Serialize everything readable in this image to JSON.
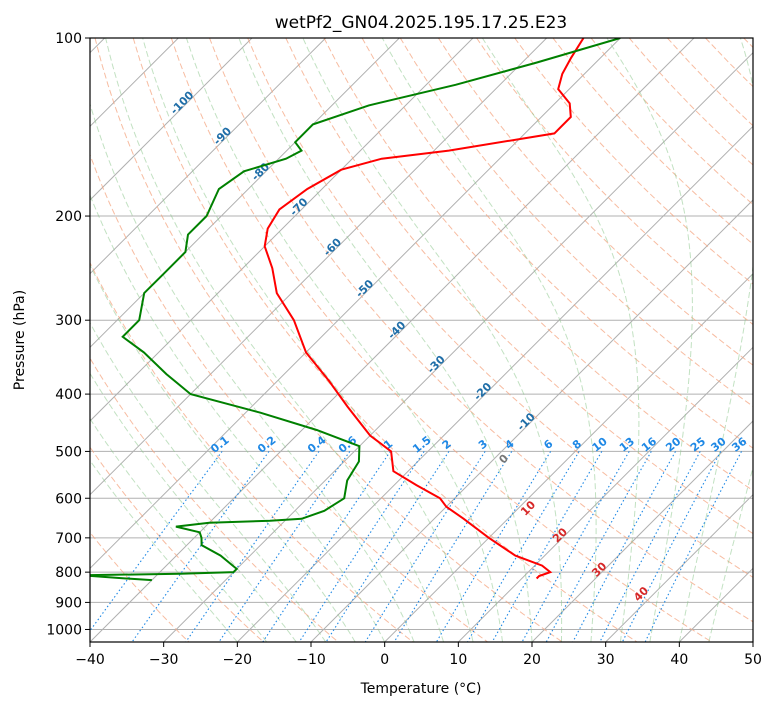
{
  "chart_data": {
    "type": "line",
    "diagram": "skew-T log-P",
    "title": "wetPf2_GN04.2025.195.17.25.E23",
    "xlabel": "Temperature (°C)",
    "ylabel": "Pressure (hPa)",
    "xlim": [
      -40,
      50
    ],
    "ylim": [
      1050,
      100
    ],
    "y_scale": "log",
    "x_ticks": [
      "−40",
      "−30",
      "−20",
      "−10",
      "0",
      "10",
      "20",
      "30",
      "40",
      "50"
    ],
    "y_ticks": [
      "100",
      "200",
      "300",
      "400",
      "500",
      "600",
      "700",
      "800",
      "900",
      "1000"
    ],
    "grid": true,
    "series": [
      {
        "role": "temperature",
        "color": "#ff0000",
        "points": [
          [
            100,
            -55
          ],
          [
            108,
            -54
          ],
          [
            115,
            -53
          ],
          [
            122,
            -51.5
          ],
          [
            129,
            -48
          ],
          [
            136,
            -46
          ],
          [
            145,
            -46
          ],
          [
            155,
            -58
          ],
          [
            160,
            -66
          ],
          [
            167,
            -70
          ],
          [
            180,
            -72
          ],
          [
            195,
            -73
          ],
          [
            210,
            -72
          ],
          [
            225,
            -70
          ],
          [
            245,
            -66
          ],
          [
            270,
            -62
          ],
          [
            300,
            -56
          ],
          [
            340,
            -50
          ],
          [
            380,
            -43
          ],
          [
            420,
            -37
          ],
          [
            470,
            -30
          ],
          [
            500,
            -25
          ],
          [
            540,
            -22
          ],
          [
            570,
            -17
          ],
          [
            600,
            -12
          ],
          [
            620,
            -10
          ],
          [
            650,
            -6
          ],
          [
            700,
            0
          ],
          [
            750,
            6
          ],
          [
            780,
            11
          ],
          [
            800,
            13
          ],
          [
            812,
            12
          ],
          [
            820,
            12
          ]
        ]
      },
      {
        "role": "dewpoint",
        "color": "#008000",
        "points": [
          [
            100,
            -50
          ],
          [
            110,
            -58
          ],
          [
            120,
            -66
          ],
          [
            130,
            -75
          ],
          [
            140,
            -80
          ],
          [
            150,
            -80
          ],
          [
            155,
            -78
          ],
          [
            160,
            -79
          ],
          [
            168,
            -83
          ],
          [
            180,
            -84
          ],
          [
            200,
            -82
          ],
          [
            215,
            -82
          ],
          [
            230,
            -80
          ],
          [
            250,
            -80
          ],
          [
            270,
            -80
          ],
          [
            300,
            -77
          ],
          [
            320,
            -77
          ],
          [
            340,
            -72
          ],
          [
            370,
            -66
          ],
          [
            400,
            -60
          ],
          [
            430,
            -48
          ],
          [
            460,
            -38
          ],
          [
            490,
            -30
          ],
          [
            520,
            -28
          ],
          [
            560,
            -27
          ],
          [
            600,
            -25
          ],
          [
            630,
            -26
          ],
          [
            650,
            -28
          ],
          [
            655,
            -32
          ],
          [
            660,
            -40
          ],
          [
            670,
            -44
          ],
          [
            685,
            -40
          ],
          [
            700,
            -39
          ],
          [
            720,
            -38
          ],
          [
            750,
            -34
          ],
          [
            790,
            -30
          ],
          [
            800,
            -30
          ],
          [
            805,
            -37
          ],
          [
            810,
            -50
          ],
          [
            818,
            -45
          ],
          [
            825,
            -40
          ]
        ]
      }
    ],
    "dry_adiabat_labels": [
      "-100",
      "-90",
      "-80",
      "-70",
      "-60",
      "-50",
      "-40",
      "-30",
      "-20",
      "-10"
    ],
    "moist_adiabat_labels": [
      "0",
      "10",
      "20",
      "30",
      "40"
    ],
    "mixing_ratio_labels": [
      "0.1",
      "0.2",
      "0.4",
      "0.6",
      "1",
      "1.5",
      "2",
      "3",
      "4",
      "6",
      "8",
      "10",
      "13",
      "16",
      "20",
      "25",
      "30",
      "36"
    ]
  }
}
